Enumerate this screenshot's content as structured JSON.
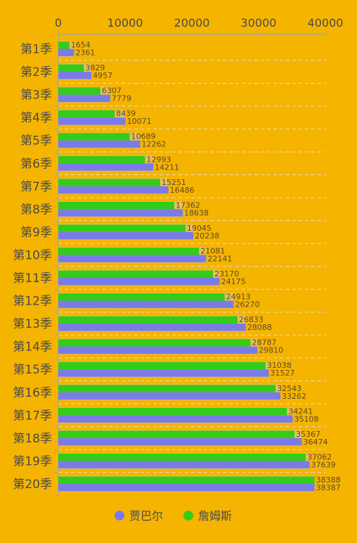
{
  "chart_data": {
    "type": "bar",
    "orientation": "horizontal",
    "categories": [
      "第1季",
      "第2季",
      "第3季",
      "第4季",
      "第5季",
      "第6季",
      "第7季",
      "第8季",
      "第9季",
      "第10季",
      "第11季",
      "第12季",
      "第13季",
      "第14季",
      "第15季",
      "第16季",
      "第17季",
      "第18季",
      "第19季",
      "第20季"
    ],
    "series": [
      {
        "name": "贾巴尔",
        "color": "#7B7BE8",
        "values": [
          2361,
          4957,
          7779,
          10071,
          12262,
          14211,
          16486,
          18638,
          20238,
          22141,
          24175,
          26270,
          28088,
          29810,
          31527,
          33262,
          35108,
          36474,
          37639,
          38387
        ]
      },
      {
        "name": "詹姆斯",
        "color": "#33CC1A",
        "values": [
          1654,
          3829,
          6307,
          8439,
          10689,
          12993,
          15251,
          17362,
          19045,
          21081,
          23170,
          24913,
          26833,
          28787,
          31038,
          32543,
          34241,
          35367,
          37062,
          38388
        ]
      }
    ],
    "xlim": [
      0,
      40000
    ],
    "xticks": [
      "0",
      "10000",
      "20000",
      "30000",
      "40000"
    ],
    "axis_position": "top",
    "grid": "dashed-horizontal",
    "legend": "bottom-center"
  }
}
